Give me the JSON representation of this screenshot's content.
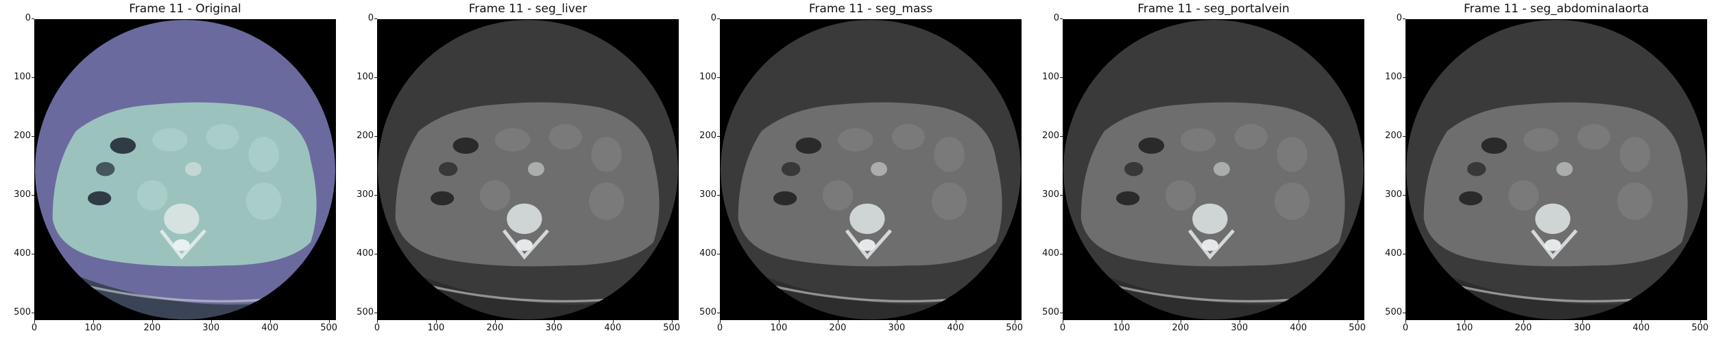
{
  "figure": {
    "panels": [
      {
        "title": "Frame 11 - Original",
        "tint": "#6b6a9e",
        "body": "#9cc2bd",
        "organ": "#a9cdc8",
        "dark": "#2f3b45"
      },
      {
        "title": "Frame 11 - seg_liver",
        "tint": "#3a3a3a",
        "body": "#6e6e6e",
        "organ": "#7a7a7a",
        "dark": "#2a2a2a"
      },
      {
        "title": "Frame 11 - seg_mass",
        "tint": "#3a3a3a",
        "body": "#6e6e6e",
        "organ": "#7a7a7a",
        "dark": "#2a2a2a"
      },
      {
        "title": "Frame 11 - seg_portalvein",
        "tint": "#3a3a3a",
        "body": "#6e6e6e",
        "organ": "#7a7a7a",
        "dark": "#2a2a2a"
      },
      {
        "title": "Frame 11 - seg_abdominalaorta",
        "tint": "#3a3a3a",
        "body": "#6e6e6e",
        "organ": "#7a7a7a",
        "dark": "#2a2a2a"
      }
    ],
    "y_ticks": [
      "0",
      "100",
      "200",
      "300",
      "400",
      "500"
    ],
    "x_ticks": [
      "0",
      "100",
      "200",
      "300",
      "400",
      "500"
    ],
    "image_extent": [
      0,
      512
    ]
  }
}
